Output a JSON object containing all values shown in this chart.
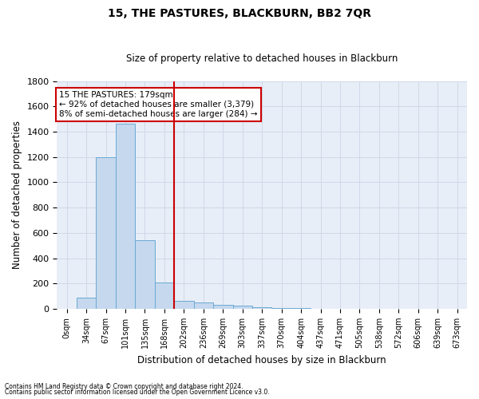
{
  "title": "15, THE PASTURES, BLACKBURN, BB2 7QR",
  "subtitle": "Size of property relative to detached houses in Blackburn",
  "xlabel": "Distribution of detached houses by size in Blackburn",
  "ylabel": "Number of detached properties",
  "footnote1": "Contains HM Land Registry data © Crown copyright and database right 2024.",
  "footnote2": "Contains public sector information licensed under the Open Government Licence v3.0.",
  "bar_labels": [
    "0sqm",
    "34sqm",
    "67sqm",
    "101sqm",
    "135sqm",
    "168sqm",
    "202sqm",
    "236sqm",
    "269sqm",
    "303sqm",
    "337sqm",
    "370sqm",
    "404sqm",
    "437sqm",
    "471sqm",
    "505sqm",
    "538sqm",
    "572sqm",
    "606sqm",
    "639sqm",
    "673sqm"
  ],
  "bar_values": [
    0,
    85,
    1200,
    1460,
    540,
    205,
    65,
    48,
    33,
    27,
    10,
    5,
    3,
    2,
    1,
    0,
    0,
    0,
    0,
    0,
    0
  ],
  "bar_color": "#c5d8ee",
  "bar_edge_color": "#6aaad4",
  "grid_color": "#d0d8e8",
  "bg_color": "#e8eef7",
  "vline_x": 5.5,
  "vline_color": "#cc0000",
  "annotation_line1": "15 THE PASTURES: 179sqm",
  "annotation_line2": "← 92% of detached houses are smaller (3,379)",
  "annotation_line3": "8% of semi-detached houses are larger (284) →",
  "annotation_box_color": "#cc0000",
  "ylim": [
    0,
    1800
  ],
  "yticks": [
    0,
    200,
    400,
    600,
    800,
    1000,
    1200,
    1400,
    1600,
    1800
  ]
}
